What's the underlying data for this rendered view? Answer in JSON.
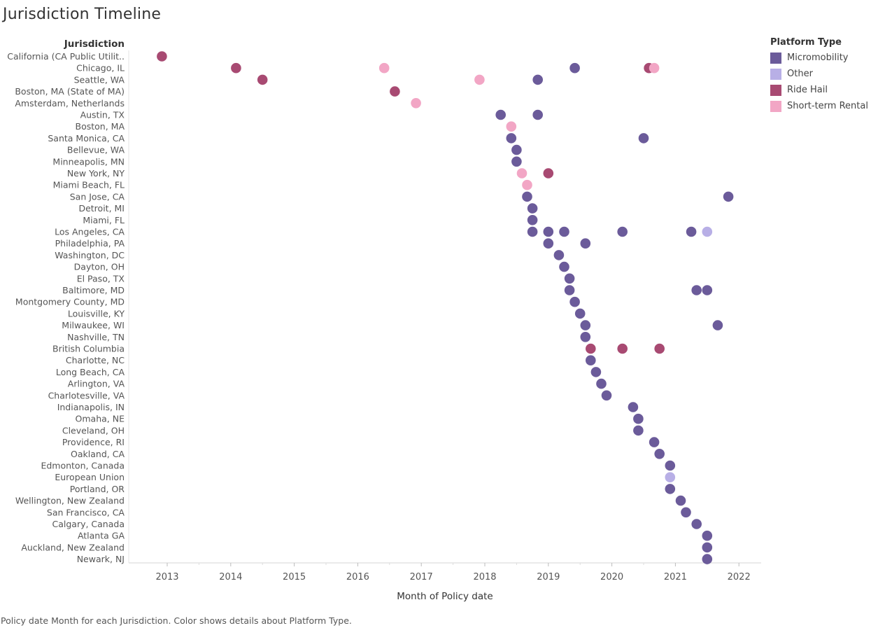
{
  "title": "Jurisdiction Timeline",
  "caption": "Policy date Month for each Jurisdiction.  Color shows details about Platform Type.",
  "legend": {
    "title": "Platform Type",
    "items": [
      {
        "label": "Micromobility",
        "color": "#6b5b9a"
      },
      {
        "label": "Other",
        "color": "#b8afe6"
      },
      {
        "label": "Ride Hail",
        "color": "#a84a72"
      },
      {
        "label": "Short-term Rental",
        "color": "#f2a6c5"
      }
    ]
  },
  "chart_data": {
    "type": "scatter",
    "title": "Jurisdiction Timeline",
    "xlabel": "Month of Policy date",
    "ylabel": "Jurisdiction",
    "xlim": [
      2012.6,
      2022.35
    ],
    "xticks": [
      2013,
      2014,
      2015,
      2016,
      2017,
      2018,
      2019,
      2020,
      2021,
      2022
    ],
    "grid": false,
    "legend_position": "top-right",
    "categories": [
      "California (CA Public Utilit..",
      "Chicago, IL",
      "Seattle, WA",
      "Boston, MA (State of MA)",
      "Amsterdam, Netherlands",
      "Austin, TX",
      "Boston, MA",
      "Santa Monica, CA",
      "Bellevue, WA",
      "Minneapolis, MN",
      "New York, NY",
      "Miami Beach, FL",
      "San Jose, CA",
      "Detroit, MI",
      "Miami, FL",
      "Los Angeles, CA",
      "Philadelphia, PA",
      "Washington, DC",
      "Dayton, OH",
      "El Paso, TX",
      "Baltimore, MD",
      "Montgomery County, MD",
      "Louisville, KY",
      "Milwaukee, WI",
      "Nashville, TN",
      "British Columbia",
      "Charlotte, NC",
      "Long Beach, CA",
      "Arlington, VA",
      "Charlotesville, VA",
      "Indianapolis, IN",
      "Omaha, NE",
      "Cleveland, OH",
      "Providence, RI",
      "Oakland, CA",
      "Edmonton, Canada",
      "European Union",
      "Portland, OR",
      "Wellington, New Zealand",
      "San Francisco, CA",
      "Calgary, Canada",
      "Atlanta GA",
      "Auckland, New Zealand",
      "Newark, NJ"
    ],
    "series": [
      {
        "name": "Micromobility",
        "color": "#6b5b9a",
        "points": [
          {
            "y": "Chicago, IL",
            "x": "2019-06"
          },
          {
            "y": "Seattle, WA",
            "x": "2018-11"
          },
          {
            "y": "Austin, TX",
            "x": "2018-04"
          },
          {
            "y": "Austin, TX",
            "x": "2018-11"
          },
          {
            "y": "Santa Monica, CA",
            "x": "2018-06"
          },
          {
            "y": "Santa Monica, CA",
            "x": "2020-07"
          },
          {
            "y": "Bellevue, WA",
            "x": "2018-07"
          },
          {
            "y": "Minneapolis, MN",
            "x": "2018-07"
          },
          {
            "y": "San Jose, CA",
            "x": "2018-09"
          },
          {
            "y": "San Jose, CA",
            "x": "2021-11"
          },
          {
            "y": "Detroit, MI",
            "x": "2018-10"
          },
          {
            "y": "Miami, FL",
            "x": "2018-10"
          },
          {
            "y": "Los Angeles, CA",
            "x": "2018-10"
          },
          {
            "y": "Los Angeles, CA",
            "x": "2019-01"
          },
          {
            "y": "Los Angeles, CA",
            "x": "2019-04"
          },
          {
            "y": "Los Angeles, CA",
            "x": "2020-03"
          },
          {
            "y": "Los Angeles, CA",
            "x": "2021-04"
          },
          {
            "y": "Philadelphia, PA",
            "x": "2019-01"
          },
          {
            "y": "Philadelphia, PA",
            "x": "2019-08"
          },
          {
            "y": "Washington, DC",
            "x": "2019-03"
          },
          {
            "y": "Dayton, OH",
            "x": "2019-04"
          },
          {
            "y": "El Paso, TX",
            "x": "2019-05"
          },
          {
            "y": "Baltimore, MD",
            "x": "2019-05"
          },
          {
            "y": "Baltimore, MD",
            "x": "2021-05"
          },
          {
            "y": "Baltimore, MD",
            "x": "2021-07"
          },
          {
            "y": "Montgomery County, MD",
            "x": "2019-06"
          },
          {
            "y": "Louisville, KY",
            "x": "2019-07"
          },
          {
            "y": "Milwaukee, WI",
            "x": "2019-08"
          },
          {
            "y": "Milwaukee, WI",
            "x": "2021-09"
          },
          {
            "y": "Nashville, TN",
            "x": "2019-08"
          },
          {
            "y": "Charlotte, NC",
            "x": "2019-09"
          },
          {
            "y": "Long Beach, CA",
            "x": "2019-10"
          },
          {
            "y": "Arlington, VA",
            "x": "2019-11"
          },
          {
            "y": "Charlotesville, VA",
            "x": "2019-12"
          },
          {
            "y": "Indianapolis, IN",
            "x": "2020-05"
          },
          {
            "y": "Omaha, NE",
            "x": "2020-06"
          },
          {
            "y": "Cleveland, OH",
            "x": "2020-06"
          },
          {
            "y": "Providence, RI",
            "x": "2020-09"
          },
          {
            "y": "Oakland, CA",
            "x": "2020-10"
          },
          {
            "y": "Edmonton, Canada",
            "x": "2020-12"
          },
          {
            "y": "Portland, OR",
            "x": "2020-12"
          },
          {
            "y": "Wellington, New Zealand",
            "x": "2021-02"
          },
          {
            "y": "San Francisco, CA",
            "x": "2021-03"
          },
          {
            "y": "Calgary, Canada",
            "x": "2021-05"
          },
          {
            "y": "Atlanta GA",
            "x": "2021-07"
          },
          {
            "y": "Auckland, New Zealand",
            "x": "2021-07"
          },
          {
            "y": "Newark, NJ",
            "x": "2021-07"
          }
        ]
      },
      {
        "name": "Other",
        "color": "#b8afe6",
        "points": [
          {
            "y": "Los Angeles, CA",
            "x": "2021-07"
          },
          {
            "y": "European Union",
            "x": "2020-12"
          }
        ]
      },
      {
        "name": "Ride Hail",
        "color": "#a84a72",
        "points": [
          {
            "y": "California (CA Public Utilit..",
            "x": "2012-12"
          },
          {
            "y": "Chicago, IL",
            "x": "2014-02"
          },
          {
            "y": "Chicago, IL",
            "x": "2020-08"
          },
          {
            "y": "Seattle, WA",
            "x": "2014-07"
          },
          {
            "y": "Boston, MA (State of MA)",
            "x": "2016-08"
          },
          {
            "y": "New York, NY",
            "x": "2019-01"
          },
          {
            "y": "British Columbia",
            "x": "2019-09"
          },
          {
            "y": "British Columbia",
            "x": "2020-03"
          },
          {
            "y": "British Columbia",
            "x": "2020-10"
          }
        ]
      },
      {
        "name": "Short-term Rental",
        "color": "#f2a6c5",
        "points": [
          {
            "y": "Chicago, IL",
            "x": "2016-06"
          },
          {
            "y": "Chicago, IL",
            "x": "2020-09"
          },
          {
            "y": "Seattle, WA",
            "x": "2017-12"
          },
          {
            "y": "Amsterdam, Netherlands",
            "x": "2016-12"
          },
          {
            "y": "Boston, MA",
            "x": "2018-06"
          },
          {
            "y": "New York, NY",
            "x": "2018-08"
          },
          {
            "y": "Miami Beach, FL",
            "x": "2018-09"
          }
        ]
      }
    ]
  }
}
